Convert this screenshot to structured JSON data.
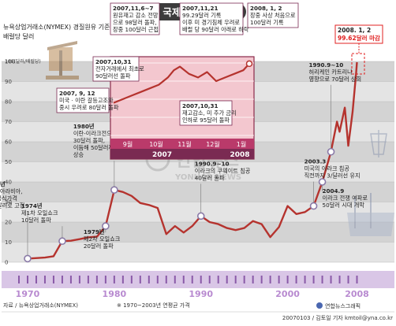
{
  "title": "국제 유가 변천사",
  "subtitle": [
    "뉴욕상업거래소(NYMEX) 경질원유 기준",
    "배럴당 달러"
  ],
  "y_axis_unit": "100(달러/배럴당)",
  "inset_y_unit": "100달러(배럴당)",
  "callout_highlight": [
    "2008. 1, 2",
    "99.62달러 마감"
  ],
  "source": "자료 / 뉴욕상업거래소(NYMEX)",
  "note": "※ 1970~2003년 연평균 가격",
  "credit": "20070103 / 김토일 기자 kmtoil@yna.co.kr",
  "agency": "연합뉴스그래픽",
  "watermark": [
    "연합뉴스",
    "YONHAP NEWS"
  ],
  "colors": {
    "line": "#b5332e",
    "accent": "#e02020",
    "inset_bg": "#f3c7cf",
    "band": "#d9c6e6"
  },
  "chart_data": [
    {
      "type": "line",
      "title": "국제 유가 변천사",
      "ylabel": "달러/배럴당",
      "ylim": [
        0,
        100
      ],
      "yticks": [
        0,
        10,
        20,
        30,
        40,
        50,
        60,
        70,
        80,
        90,
        100
      ],
      "xlim": [
        1969,
        2008.5
      ],
      "xticks": [
        1970,
        1980,
        1990,
        2000,
        2008
      ],
      "grid": true,
      "x": [
        1970,
        1972,
        1973,
        1974,
        1975,
        1976,
        1977,
        1978,
        1979,
        1980,
        1981,
        1982,
        1983,
        1984,
        1985,
        1986,
        1987,
        1988,
        1989,
        1990,
        1991,
        1992,
        1993,
        1994,
        1995,
        1996,
        1997,
        1998,
        1999,
        2000,
        2001,
        2002,
        2003,
        2004,
        2005,
        2005.7,
        2006,
        2006.6,
        2007,
        2007.5,
        2007.9,
        2008
      ],
      "y": [
        1.8,
        2.3,
        3.0,
        10.5,
        10.7,
        11.5,
        12.4,
        12.7,
        18,
        36,
        35,
        33,
        29.5,
        28.5,
        27,
        14,
        18,
        14.8,
        18,
        23,
        20,
        19,
        17,
        16,
        17,
        20.5,
        19,
        12.5,
        17.5,
        28,
        24,
        25,
        28,
        40,
        55,
        70,
        65,
        77,
        58,
        75,
        94,
        99.6
      ],
      "annotations": [
        {
          "year": 1970,
          "text": [
            "1970년",
            "사우디아라비아,",
            "원유 공식가격",
            "1.80달러로 고정"
          ]
        },
        {
          "year": 1974,
          "text": [
            "1974년",
            "제1차 오일쇼크",
            "10달러 돌파"
          ]
        },
        {
          "year": 1979,
          "text": [
            "1979년",
            "제2차 오일쇼크",
            "20달러 돌파"
          ]
        },
        {
          "year": 1980,
          "text": [
            "1980년",
            "이란-이라크전으로",
            "30달러 돌파,",
            "이듬해 50달러까지",
            "상승"
          ]
        },
        {
          "year": 1990,
          "text": [
            "1990.9~10",
            "이라크의 쿠웨이트 침공",
            "40달러 돌파"
          ]
        },
        {
          "year": 2003,
          "text": [
            "2003.3",
            "미국의 이라크 침공",
            "직전까지 3/달러선 유지"
          ]
        },
        {
          "year": 2004,
          "text": [
            "2004.9",
            "이라크 전쟁 여파로",
            "50달러 시대 개막"
          ]
        },
        {
          "year": 2005,
          "text": [
            "1990.9~10",
            "허리케인 카트리나",
            "영향으로 70달러 상회"
          ]
        }
      ]
    },
    {
      "type": "line",
      "title": "",
      "ylim": [
        60,
        100
      ],
      "yticks": [
        60,
        70,
        80,
        90,
        100
      ],
      "categories": [
        "9월",
        "10월",
        "11월",
        "12월",
        "1월"
      ],
      "year_labels": [
        "2007",
        "2008"
      ],
      "x": [
        0,
        0.3,
        0.6,
        0.9,
        1.2,
        1.5,
        1.8,
        2.0,
        2.2,
        2.5,
        2.8,
        3.1,
        3.4,
        3.7,
        4.0,
        4.3,
        4.5
      ],
      "y": [
        78,
        80,
        82,
        84,
        86,
        88,
        92,
        96,
        98,
        94,
        92,
        95,
        90,
        92,
        94,
        96,
        99.6
      ],
      "annotations": [
        {
          "text": [
            "2007, 9, 12",
            "미국 · 이란 갈등고조와",
            "중시 우려로 80달러 돌파"
          ]
        },
        {
          "text": [
            "2007,10,31",
            "전자거래에서 최초로",
            "90달러선 돌파"
          ]
        },
        {
          "text": [
            "2007,11,6~7",
            "원유재고 감소 전망",
            "으로 98달러 돌파,",
            "장중 100달러 근접"
          ]
        },
        {
          "text": [
            "2007,10,31",
            "재고감소, 미 추가 금리",
            "인하로 95달러 돌파"
          ]
        },
        {
          "text": [
            "2007,11,21",
            "99.29달러 기록",
            "이후 미 경기침체 우려로",
            "배럴 당 90달러 아래로 하락"
          ]
        },
        {
          "text": [
            "2008, 1, 2",
            "장중 사상 처음으로",
            "100달러 기록"
          ]
        }
      ]
    }
  ]
}
